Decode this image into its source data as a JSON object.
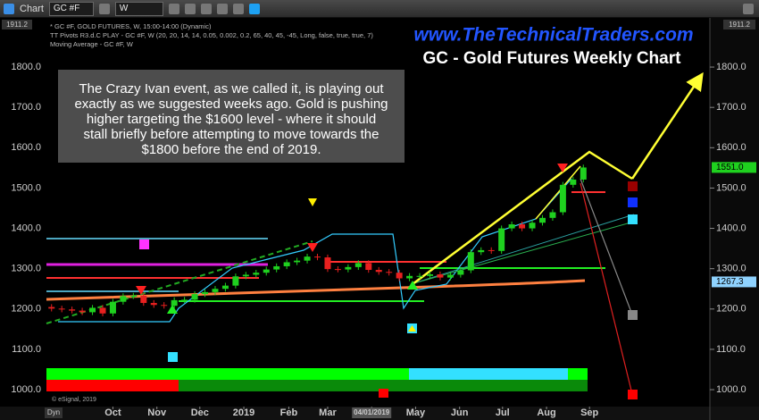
{
  "toolbar": {
    "title": "Chart",
    "symbol": "GC #F",
    "interval": "W"
  },
  "chart_data": {
    "type": "candlestick",
    "title": "GC - Gold Futures Weekly Chart",
    "website": "www.TheTechnicalTraders.com",
    "legend_lines": [
      "* GC #F, GOLD FUTURES, W, 15:00-14:00 (Dynamic)",
      "TT Pivots R3.d.C PLAY - GC #F, W (20, 20, 14, 14, 0.05, 0.002, 0.2, 65, 40, 45, -45, Long, false, true, true, 7)",
      "Moving Average - GC #F, W"
    ],
    "annotation": [
      "The Crazy Ivan event, as we called it, is playing out",
      "exactly as we suggested weeks ago. Gold is pushing",
      "higher targeting the $1600 level - where it should",
      "stall briefly before attempting to move towards the",
      "$1800 before the end of 2019."
    ],
    "copyright": "© eSignal, 2019",
    "corner_label": "Dyn",
    "top_label": "1911.2",
    "up_color": "#1fd11f",
    "down_color": "#e8201f",
    "xlim": [
      -0.5,
      63.5
    ],
    "xticks": [
      {
        "value": 6.0,
        "label": "Oct"
      },
      {
        "value": 10.3,
        "label": "Nov"
      },
      {
        "value": 14.5,
        "label": "Dec"
      },
      {
        "value": 18.8,
        "label": "2019"
      },
      {
        "value": 23.2,
        "label": "Feb"
      },
      {
        "value": 27.0,
        "label": "Mar"
      },
      {
        "value": 31.3,
        "label": "04/01/2019"
      },
      {
        "value": 35.6,
        "label": "May"
      },
      {
        "value": 39.9,
        "label": "Jun"
      },
      {
        "value": 44.1,
        "label": "Jul"
      },
      {
        "value": 48.4,
        "label": "Aug"
      },
      {
        "value": 52.6,
        "label": "Sep"
      }
    ],
    "ylim": [
      958,
      1922
    ],
    "yticks": [
      {
        "value": 1000,
        "label": "1000.0"
      },
      {
        "value": 1100,
        "label": "1100.0"
      },
      {
        "value": 1200,
        "label": "1200.0"
      },
      {
        "value": 1300,
        "label": "1300.0"
      },
      {
        "value": 1400,
        "label": "1400.0"
      },
      {
        "value": 1500,
        "label": "1500.0"
      },
      {
        "value": 1600,
        "label": "1600.0"
      },
      {
        "value": 1700,
        "label": "1700.0"
      },
      {
        "value": 1800,
        "label": "1800.0"
      }
    ],
    "price_labels": [
      {
        "value": 1551,
        "label": "1551.0",
        "color": "#1fd11f"
      },
      {
        "value": 1267.3,
        "label": "1267.3",
        "color": "#8fd3ff"
      }
    ],
    "open": [
      1205,
      1201,
      1199,
      1196,
      1192,
      1203,
      1189,
      1218,
      1232,
      1233,
      1215,
      1210,
      1208,
      1222,
      1223,
      1237,
      1242,
      1250,
      1258,
      1281,
      1285,
      1290,
      1298,
      1306,
      1316,
      1320,
      1330,
      1328,
      1299,
      1298,
      1304,
      1314,
      1297,
      1292,
      1290,
      1276,
      1282,
      1282,
      1286,
      1278,
      1285,
      1296,
      1341,
      1346,
      1344,
      1400,
      1410,
      1400,
      1414,
      1426,
      1440,
      1508,
      1521
    ],
    "high": [
      1212,
      1208,
      1206,
      1203,
      1210,
      1210,
      1225,
      1239,
      1240,
      1240,
      1222,
      1217,
      1229,
      1230,
      1244,
      1249,
      1257,
      1265,
      1288,
      1292,
      1297,
      1305,
      1313,
      1323,
      1327,
      1337,
      1337,
      1335,
      1306,
      1311,
      1321,
      1321,
      1304,
      1299,
      1297,
      1289,
      1289,
      1293,
      1293,
      1292,
      1303,
      1348,
      1353,
      1353,
      1407,
      1417,
      1417,
      1421,
      1433,
      1447,
      1515,
      1528,
      1558
    ],
    "low": [
      1194,
      1192,
      1189,
      1185,
      1185,
      1182,
      1182,
      1211,
      1225,
      1208,
      1203,
      1201,
      1201,
      1215,
      1216,
      1230,
      1235,
      1243,
      1251,
      1274,
      1278,
      1283,
      1291,
      1299,
      1309,
      1313,
      1321,
      1292,
      1291,
      1291,
      1297,
      1290,
      1285,
      1283,
      1269,
      1269,
      1275,
      1275,
      1271,
      1271,
      1278,
      1289,
      1334,
      1337,
      1337,
      1393,
      1393,
      1393,
      1407,
      1419,
      1433,
      1501,
      1514
    ],
    "close": [
      1201,
      1199,
      1196,
      1192,
      1203,
      1189,
      1218,
      1232,
      1233,
      1215,
      1210,
      1208,
      1222,
      1223,
      1237,
      1242,
      1250,
      1258,
      1281,
      1285,
      1290,
      1298,
      1306,
      1316,
      1320,
      1330,
      1328,
      1299,
      1298,
      1304,
      1314,
      1297,
      1292,
      1290,
      1276,
      1282,
      1282,
      1286,
      1278,
      1285,
      1296,
      1341,
      1346,
      1344,
      1400,
      1410,
      1400,
      1414,
      1426,
      1440,
      1508,
      1521,
      1551
    ]
  }
}
